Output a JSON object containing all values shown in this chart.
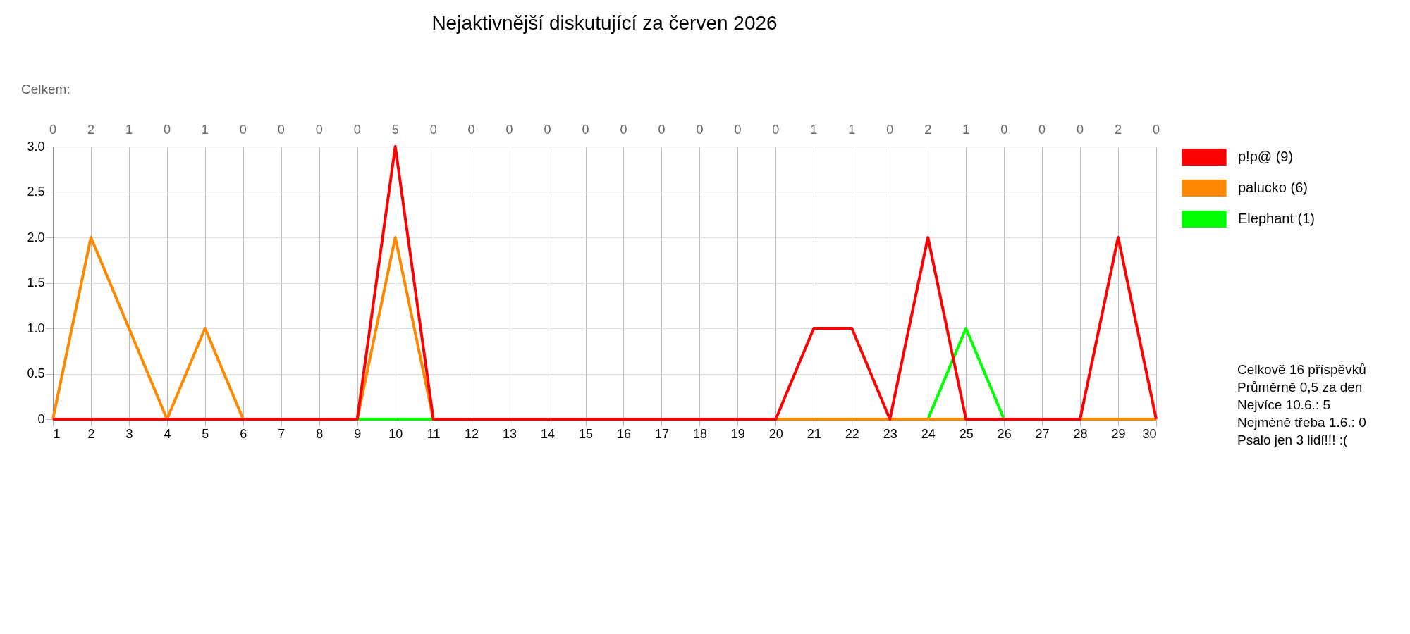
{
  "chart_data": {
    "type": "line",
    "title": "Nejaktivnější diskutující za červen 2026",
    "x": [
      1,
      2,
      3,
      4,
      5,
      6,
      7,
      8,
      9,
      10,
      11,
      12,
      13,
      14,
      15,
      16,
      17,
      18,
      19,
      20,
      21,
      22,
      23,
      24,
      25,
      26,
      27,
      28,
      29,
      30
    ],
    "series": [
      {
        "name": "p!p@ (9)",
        "color": "#ff0000",
        "values": [
          0,
          0,
          0,
          0,
          0,
          0,
          0,
          0,
          0,
          3,
          0,
          0,
          0,
          0,
          0,
          0,
          0,
          0,
          0,
          0,
          1,
          1,
          0,
          2,
          0,
          0,
          0,
          0,
          2,
          0
        ]
      },
      {
        "name": "palucko (6)",
        "color": "#ff8800",
        "values": [
          0,
          2,
          1,
          0,
          1,
          0,
          0,
          0,
          0,
          2,
          0,
          0,
          0,
          0,
          0,
          0,
          0,
          0,
          0,
          0,
          0,
          0,
          0,
          0,
          0,
          0,
          0,
          0,
          0,
          0
        ]
      },
      {
        "name": "Elephant (1)",
        "color": "#00ff00",
        "values": [
          null,
          null,
          null,
          null,
          null,
          null,
          null,
          null,
          0,
          0,
          0,
          null,
          null,
          null,
          null,
          null,
          null,
          null,
          null,
          null,
          null,
          null,
          null,
          0,
          1,
          0,
          null,
          null,
          null,
          null
        ]
      }
    ],
    "xlim": [
      1,
      30
    ],
    "xticks": [
      1,
      2,
      3,
      4,
      5,
      6,
      7,
      8,
      9,
      10,
      11,
      12,
      13,
      14,
      15,
      16,
      17,
      18,
      19,
      20,
      21,
      22,
      23,
      24,
      25,
      26,
      27,
      28,
      29,
      30
    ],
    "ylim": [
      0,
      3
    ],
    "yticks": [
      0,
      0.5,
      {
        "value": 1,
        "label": "1.0"
      },
      1.5,
      {
        "value": 2,
        "label": "2.0"
      },
      2.5,
      {
        "value": 3,
        "label": "3.0"
      }
    ],
    "totals": [
      "0",
      "2",
      "1",
      "0",
      "1",
      "0",
      "0",
      "0",
      "0",
      "5",
      "0",
      "0",
      "0",
      "0",
      "0",
      "0",
      "0",
      "0",
      "0",
      "0",
      "1",
      "1",
      "0",
      "2",
      "1",
      "0",
      "0",
      "0",
      "2",
      "0"
    ],
    "annotations": [
      "Celkem:",
      "Celkově 16 příspěvků",
      "Průměrně 0,5 za den",
      "Nejvíce 10.6.: 5",
      "Nejméně třeba 1.6.: 0",
      "Psalo jen 3 lidí!!! :("
    ],
    "grid": true,
    "legend": "right",
    "marker": "none",
    "line_style": "solid"
  }
}
